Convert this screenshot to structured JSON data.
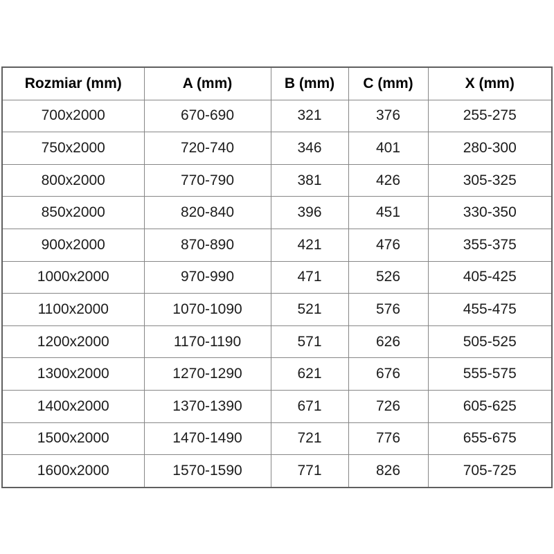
{
  "colors": {
    "background": "#ffffff",
    "outer_border": "#5f5f5f",
    "inner_border": "#868686",
    "header_text": "#000000",
    "cell_text": "#1c1c1c"
  },
  "table": {
    "columns": [
      "Rozmiar (mm)",
      "A (mm)",
      "B (mm)",
      "C (mm)",
      "X (mm)"
    ],
    "rows": [
      [
        "700x2000",
        "670-690",
        "321",
        "376",
        "255-275"
      ],
      [
        "750x2000",
        "720-740",
        "346",
        "401",
        "280-300"
      ],
      [
        "800x2000",
        "770-790",
        "381",
        "426",
        "305-325"
      ],
      [
        "850x2000",
        "820-840",
        "396",
        "451",
        "330-350"
      ],
      [
        "900x2000",
        "870-890",
        "421",
        "476",
        "355-375"
      ],
      [
        "1000x2000",
        "970-990",
        "471",
        "526",
        "405-425"
      ],
      [
        "1100x2000",
        "1070-1090",
        "521",
        "576",
        "455-475"
      ],
      [
        "1200x2000",
        "1170-1190",
        "571",
        "626",
        "505-525"
      ],
      [
        "1300x2000",
        "1270-1290",
        "621",
        "676",
        "555-575"
      ],
      [
        "1400x2000",
        "1370-1390",
        "671",
        "726",
        "605-625"
      ],
      [
        "1500x2000",
        "1470-1490",
        "721",
        "776",
        "655-675"
      ],
      [
        "1600x2000",
        "1570-1590",
        "771",
        "826",
        "705-725"
      ]
    ]
  }
}
